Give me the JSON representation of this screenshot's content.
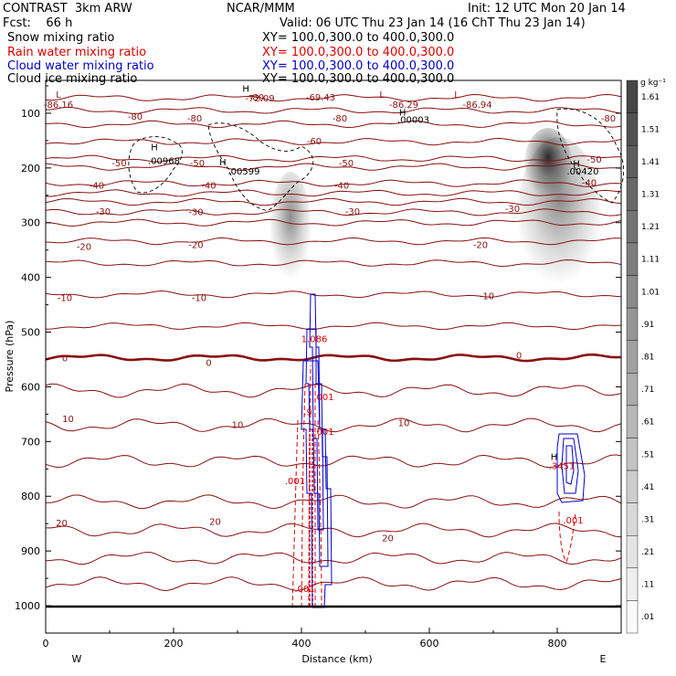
{
  "header": {
    "model": "CONTRAST  3km ARW",
    "org": "NCAR/MMM",
    "init": "Init: 12 UTC Mon 20 Jan 14",
    "fcst": "Fcst:    66 h",
    "valid": "Valid: 06 UTC Thu 23 Jan 14 (16 ChT Thu 23 Jan 14)",
    "fields": [
      {
        "name": "Snow mixing ratio",
        "xy": "XY= 100.0,300.0 to 400.0,300.0",
        "color": "#000000"
      },
      {
        "name": "Rain water mixing ratio",
        "xy": "XY= 100.0,300.0 to 400.0,300.0",
        "color": "#dd0000"
      },
      {
        "name": "Cloud water mixing ratio",
        "xy": "XY= 100.0,300.0 to 400.0,300.0",
        "color": "#0000cc"
      },
      {
        "name": "Cloud ice mixing ratio",
        "xy": "XY= 100.0,300.0 to 400.0,300.0",
        "color": "#000000"
      }
    ]
  },
  "chart_data": {
    "type": "contour",
    "xlabel": "Distance (km)",
    "ylabel": "Pressure (hPa)",
    "xlim": [
      0,
      900
    ],
    "ylim": [
      1050,
      40
    ],
    "x_ticks": [
      0,
      200,
      400,
      600,
      800
    ],
    "y_ticks": [
      100,
      200,
      300,
      400,
      500,
      600,
      700,
      800,
      900,
      1000
    ],
    "left_end_label": "W",
    "right_end_label": "E",
    "colorbar": {
      "unit": "g kg⁻¹",
      "labels": [
        "1.61",
        "1.51",
        "1.41",
        "1.31",
        "1.21",
        "1.11",
        "1.01",
        ".91",
        ".81",
        ".71",
        ".61",
        ".51",
        ".41",
        ".31",
        ".21",
        ".11",
        ".01"
      ]
    },
    "temperature_contours": [
      {
        "value": -80,
        "p": 72
      },
      {
        "value": -80,
        "p": 95
      },
      {
        "value": -70,
        "p": 120
      },
      {
        "value": -60,
        "p": 152
      },
      {
        "value": -50,
        "p": 183
      },
      {
        "value": -50,
        "p": 198
      },
      {
        "value": -40,
        "p": 228
      },
      {
        "value": -40,
        "p": 246
      },
      {
        "value": -30,
        "p": 262
      },
      {
        "value": -30,
        "p": 281
      },
      {
        "value": -30,
        "p": 300
      },
      {
        "value": -20,
        "p": 334
      },
      {
        "value": -20,
        "p": 374
      },
      {
        "value": -10,
        "p": 431
      },
      {
        "value": -10,
        "p": 489
      },
      {
        "value": 0,
        "p": 547
      },
      {
        "value": 10,
        "p": 607
      },
      {
        "value": 10,
        "p": 670
      },
      {
        "value": 10,
        "p": 736
      },
      {
        "value": 20,
        "p": 810
      },
      {
        "value": 20,
        "p": 862
      },
      {
        "value": 20,
        "p": 913
      },
      {
        "value": 20,
        "p": 960
      }
    ],
    "contour_labels": [
      {
        "text": "-86.16",
        "x": 20,
        "p": 90
      },
      {
        "text": "-80",
        "x": 330,
        "p": 77
      },
      {
        "text": "-72.09",
        "x": 335,
        "p": 78
      },
      {
        "text": "-69.43",
        "x": 430,
        "p": 77
      },
      {
        "text": "-86.29",
        "x": 560,
        "p": 90
      },
      {
        "text": "-86.94",
        "x": 675,
        "p": 90
      },
      {
        "text": "-80",
        "x": 140,
        "p": 112
      },
      {
        "text": "-80",
        "x": 233,
        "p": 115
      },
      {
        "text": "-80",
        "x": 460,
        "p": 115
      },
      {
        "text": "-80",
        "x": 880,
        "p": 115
      },
      {
        "text": "-60",
        "x": 420,
        "p": 157
      },
      {
        "text": "-50",
        "x": 115,
        "p": 197
      },
      {
        "text": "-50",
        "x": 237,
        "p": 197
      },
      {
        "text": "-50",
        "x": 470,
        "p": 197
      },
      {
        "text": "-50",
        "x": 858,
        "p": 190
      },
      {
        "text": "-40",
        "x": 80,
        "p": 238
      },
      {
        "text": "-40",
        "x": 255,
        "p": 238
      },
      {
        "text": "-40",
        "x": 463,
        "p": 238
      },
      {
        "text": "-40",
        "x": 850,
        "p": 233
      },
      {
        "text": "-30",
        "x": 90,
        "p": 285
      },
      {
        "text": "-30",
        "x": 235,
        "p": 286
      },
      {
        "text": "-30",
        "x": 480,
        "p": 285
      },
      {
        "text": "-30",
        "x": 730,
        "p": 280
      },
      {
        "text": "-20",
        "x": 60,
        "p": 350
      },
      {
        "text": "-20",
        "x": 235,
        "p": 346
      },
      {
        "text": "-20",
        "x": 680,
        "p": 346
      },
      {
        "text": "-10",
        "x": 30,
        "p": 443
      },
      {
        "text": "-10",
        "x": 240,
        "p": 443
      },
      {
        "text": "-10",
        "x": 690,
        "p": 440
      },
      {
        "text": "0",
        "x": 30,
        "p": 553
      },
      {
        "text": "0",
        "x": 255,
        "p": 562
      },
      {
        "text": "0",
        "x": 740,
        "p": 548
      },
      {
        "text": "10",
        "x": 35,
        "p": 664
      },
      {
        "text": "10",
        "x": 300,
        "p": 675
      },
      {
        "text": "10",
        "x": 560,
        "p": 672
      },
      {
        "text": "20",
        "x": 25,
        "p": 855
      },
      {
        "text": "20",
        "x": 265,
        "p": 852
      },
      {
        "text": "20",
        "x": 535,
        "p": 882
      },
      {
        "text": ".001",
        "x": 390,
        "p": 778
      },
      {
        "text": ".001",
        "x": 405,
        "p": 975
      },
      {
        "text": ".001",
        "x": 825,
        "p": 850
      },
      {
        "text": "1.086",
        "x": 420,
        "p": 518
      },
      {
        "text": ".001",
        "x": 435,
        "p": 624
      },
      {
        "text": ".9",
        "x": 410,
        "p": 652
      },
      {
        "text": ".001",
        "x": 435,
        "p": 688
      },
      {
        "text": ".00968",
        "x": 185,
        "p": 193
      },
      {
        "text": ".00599",
        "x": 310,
        "p": 212
      },
      {
        "text": ".00003",
        "x": 575,
        "p": 118
      },
      {
        "text": ".00420",
        "x": 840,
        "p": 212
      },
      {
        "text": ".3451",
        "x": 807,
        "p": 750
      }
    ],
    "extrema": [
      {
        "label": "L",
        "x": 20,
        "p": 72
      },
      {
        "label": "H",
        "x": 313,
        "p": 61
      },
      {
        "label": "L",
        "x": 526,
        "p": 72
      },
      {
        "label": "L",
        "x": 643,
        "p": 72
      },
      {
        "label": "H",
        "x": 558,
        "p": 104
      },
      {
        "label": "H",
        "x": 170,
        "p": 168
      },
      {
        "label": "H",
        "x": 277,
        "p": 195
      },
      {
        "label": "H",
        "x": 830,
        "p": 198
      },
      {
        "label": "H",
        "x": 795,
        "p": 734
      }
    ]
  }
}
